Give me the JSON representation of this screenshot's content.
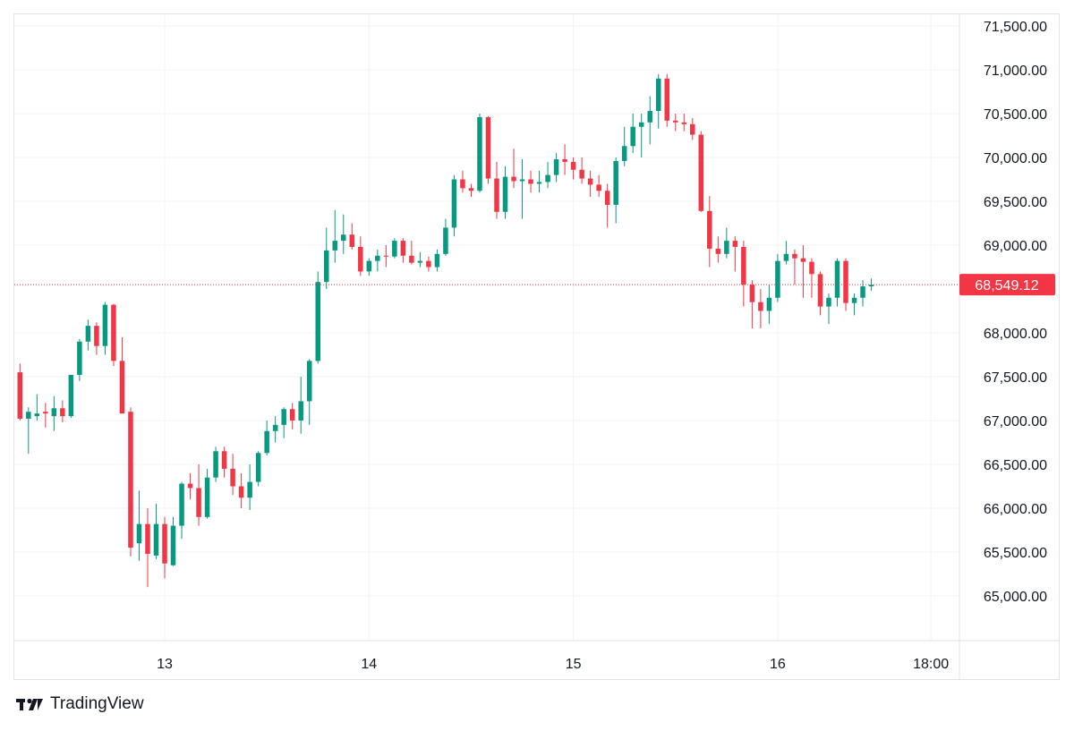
{
  "colors": {
    "up": "#089981",
    "down": "#f23645",
    "grid": "#f0f3fa",
    "text": "#131722",
    "border": "#e0e3eb"
  },
  "branding": {
    "logo_icon": "tradingview-logo-icon",
    "name": "TradingView"
  },
  "chart_data": {
    "type": "candlestick",
    "title": "",
    "ylim": [
      64500,
      71700
    ],
    "yticks": [
      71500,
      71000,
      70500,
      70000,
      69500,
      69000,
      68000,
      67500,
      67000,
      66500,
      66000,
      65500,
      65000
    ],
    "ytick_labels": [
      "71,500.00",
      "71,000.00",
      "70,500.00",
      "70,000.00",
      "69,500.00",
      "69,000.00",
      "68,000.00",
      "67,500.00",
      "67,000.00",
      "66,500.00",
      "66,000.00",
      "65,500.00",
      "65,000.00"
    ],
    "xlim": [
      12.25,
      17.0
    ],
    "x_unit": "days (day-of-month, fractional)",
    "xticks": [
      {
        "x": 13.0,
        "label": "13"
      },
      {
        "x": 14.0,
        "label": "14"
      },
      {
        "x": 15.0,
        "label": "15"
      },
      {
        "x": 16.0,
        "label": "16"
      },
      {
        "x": 16.75,
        "label": "18:00"
      }
    ],
    "last_price": 68549.12,
    "last_price_label": "68,549.12",
    "candle_interval_hours": 1,
    "start_x": 12.2917,
    "candles": [
      [
        67550,
        67650,
        67000,
        67020
      ],
      [
        67020,
        67150,
        66620,
        67100
      ],
      [
        67050,
        67300,
        67000,
        67080
      ],
      [
        67100,
        67200,
        66920,
        67080
      ],
      [
        67050,
        67280,
        66880,
        67140
      ],
      [
        67140,
        67230,
        66980,
        67050
      ],
      [
        67050,
        67520,
        67030,
        67520
      ],
      [
        67520,
        67930,
        67450,
        67900
      ],
      [
        67900,
        68150,
        67800,
        68080
      ],
      [
        68080,
        68120,
        67750,
        67850
      ],
      [
        67850,
        68350,
        67750,
        68320
      ],
      [
        68320,
        68330,
        67620,
        67680
      ],
      [
        67680,
        67950,
        67100,
        67080
      ],
      [
        67100,
        67150,
        65450,
        65550
      ],
      [
        65600,
        66200,
        65400,
        65820
      ],
      [
        65820,
        66000,
        65100,
        65480
      ],
      [
        65460,
        66050,
        65420,
        65820
      ],
      [
        65820,
        65900,
        65200,
        65370
      ],
      [
        65350,
        65900,
        65340,
        65800
      ],
      [
        65800,
        66300,
        65650,
        66280
      ],
      [
        66280,
        66400,
        66100,
        66230
      ],
      [
        66230,
        66500,
        65800,
        65900
      ],
      [
        65900,
        66450,
        65880,
        66350
      ],
      [
        66350,
        66700,
        66300,
        66650
      ],
      [
        66650,
        66700,
        66350,
        66450
      ],
      [
        66450,
        66620,
        66150,
        66250
      ],
      [
        66250,
        66400,
        66000,
        66120
      ],
      [
        66120,
        66500,
        65980,
        66300
      ],
      [
        66300,
        66650,
        66250,
        66630
      ],
      [
        66630,
        67000,
        66600,
        66880
      ],
      [
        66880,
        67050,
        66750,
        66950
      ],
      [
        66950,
        67150,
        66800,
        67130
      ],
      [
        67130,
        67200,
        66900,
        67000
      ],
      [
        67000,
        67500,
        66850,
        67220
      ],
      [
        67220,
        67700,
        66950,
        67680
      ],
      [
        67680,
        68700,
        67650,
        68580
      ],
      [
        68580,
        69200,
        68500,
        68940
      ],
      [
        68940,
        69400,
        68800,
        69050
      ],
      [
        69050,
        69350,
        68900,
        69120
      ],
      [
        69120,
        69250,
        68950,
        68980
      ],
      [
        68980,
        69100,
        68650,
        68700
      ],
      [
        68700,
        68850,
        68650,
        68820
      ],
      [
        68820,
        68950,
        68700,
        68880
      ],
      [
        68880,
        69000,
        68750,
        68870
      ],
      [
        68870,
        69080,
        68850,
        69050
      ],
      [
        69050,
        69080,
        68800,
        68880
      ],
      [
        68880,
        69050,
        68780,
        68800
      ],
      [
        68800,
        68920,
        68750,
        68820
      ],
      [
        68820,
        68870,
        68700,
        68750
      ],
      [
        68750,
        68950,
        68700,
        68900
      ],
      [
        68900,
        69300,
        68880,
        69200
      ],
      [
        69200,
        69800,
        69100,
        69750
      ],
      [
        69750,
        69850,
        69600,
        69650
      ],
      [
        69650,
        69700,
        69550,
        69620
      ],
      [
        69620,
        70500,
        69600,
        70460
      ],
      [
        70460,
        70470,
        69700,
        69760
      ],
      [
        69760,
        69950,
        69300,
        69380
      ],
      [
        69380,
        69900,
        69300,
        69780
      ],
      [
        69780,
        70100,
        69650,
        69730
      ],
      [
        69730,
        69980,
        69300,
        69750
      ],
      [
        69750,
        69850,
        69600,
        69700
      ],
      [
        69700,
        69850,
        69600,
        69720
      ],
      [
        69720,
        69950,
        69650,
        69800
      ],
      [
        69800,
        70050,
        69720,
        69980
      ],
      [
        69980,
        70150,
        69800,
        69950
      ],
      [
        69950,
        70000,
        69750,
        69860
      ],
      [
        69860,
        70000,
        69700,
        69760
      ],
      [
        69760,
        69850,
        69550,
        69690
      ],
      [
        69690,
        69800,
        69550,
        69620
      ],
      [
        69620,
        69700,
        69200,
        69460
      ],
      [
        69460,
        70000,
        69250,
        69960
      ],
      [
        69960,
        70350,
        69900,
        70130
      ],
      [
        70130,
        70500,
        70050,
        70350
      ],
      [
        70350,
        70500,
        70000,
        70400
      ],
      [
        70400,
        70700,
        70150,
        70530
      ],
      [
        70530,
        70950,
        70330,
        70900
      ],
      [
        70900,
        70950,
        70350,
        70420
      ],
      [
        70420,
        70500,
        70300,
        70400
      ],
      [
        70400,
        70500,
        70300,
        70380
      ],
      [
        70380,
        70450,
        70200,
        70260
      ],
      [
        70260,
        70300,
        69380,
        69390
      ],
      [
        69390,
        69560,
        68750,
        68960
      ],
      [
        68960,
        69100,
        68800,
        68900
      ],
      [
        68900,
        69200,
        68850,
        69050
      ],
      [
        69050,
        69100,
        68700,
        68980
      ],
      [
        68980,
        69050,
        68300,
        68550
      ],
      [
        68550,
        68600,
        68050,
        68350
      ],
      [
        68350,
        68500,
        68050,
        68250
      ],
      [
        68250,
        68550,
        68100,
        68400
      ],
      [
        68400,
        68900,
        68350,
        68820
      ],
      [
        68820,
        69050,
        68780,
        68900
      ],
      [
        68900,
        68950,
        68550,
        68850
      ],
      [
        68850,
        69000,
        68400,
        68810
      ],
      [
        68810,
        68850,
        68400,
        68670
      ],
      [
        68670,
        68700,
        68200,
        68300
      ],
      [
        68300,
        68450,
        68100,
        68400
      ],
      [
        68400,
        68850,
        68300,
        68820
      ],
      [
        68820,
        68850,
        68250,
        68340
      ],
      [
        68340,
        68450,
        68200,
        68400
      ],
      [
        68400,
        68600,
        68300,
        68530
      ],
      [
        68530,
        68620,
        68480,
        68549.12
      ]
    ]
  }
}
